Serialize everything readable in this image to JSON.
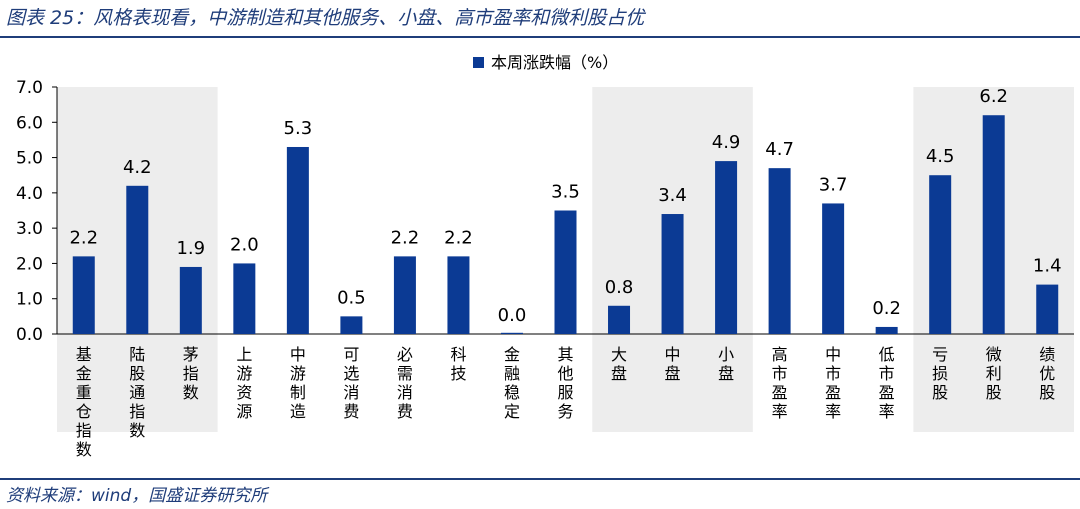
{
  "figure_title": "图表 25：风格表现看，中游制造和其他服务、小盘、高市盈率和微利股占优",
  "source": "资料来源：wind，国盛证券研究所",
  "colors": {
    "bar": "#0b3a94",
    "shade": "#ededed",
    "accent": "#1f3d7a"
  },
  "chart_data": {
    "type": "bar",
    "title": "",
    "legend": "本周涨跌幅（%）",
    "legend_position": "top-center",
    "xlabel": "",
    "ylabel": "",
    "ylim": [
      0,
      7
    ],
    "yticks": [
      "0.0",
      "1.0",
      "2.0",
      "3.0",
      "4.0",
      "5.0",
      "6.0",
      "7.0"
    ],
    "grid": false,
    "categories": [
      "基金重仓指数",
      "陆股通指数",
      "茅指数",
      "上游资源",
      "中游制造",
      "可选消费",
      "必需消费",
      "科技",
      "金融稳定",
      "其他服务",
      "大盘",
      "中盘",
      "小盘",
      "高市盈率",
      "中市盈率",
      "低市盈率",
      "亏损股",
      "微利股",
      "绩优股"
    ],
    "values": [
      2.2,
      4.2,
      1.9,
      2.0,
      5.3,
      0.5,
      2.2,
      2.2,
      0.0,
      3.5,
      0.8,
      3.4,
      4.9,
      4.7,
      3.7,
      0.2,
      4.5,
      6.2,
      1.4
    ],
    "value_labels": [
      "2.2",
      "4.2",
      "1.9",
      "2.0",
      "5.3",
      "0.5",
      "2.2",
      "2.2",
      "0.0",
      "3.5",
      "0.8",
      "3.4",
      "4.9",
      "4.7",
      "3.7",
      "0.2",
      "4.5",
      "6.2",
      "1.4"
    ],
    "shaded_groups": [
      [
        0,
        2
      ],
      [
        10,
        12
      ],
      [
        16,
        18
      ]
    ]
  }
}
